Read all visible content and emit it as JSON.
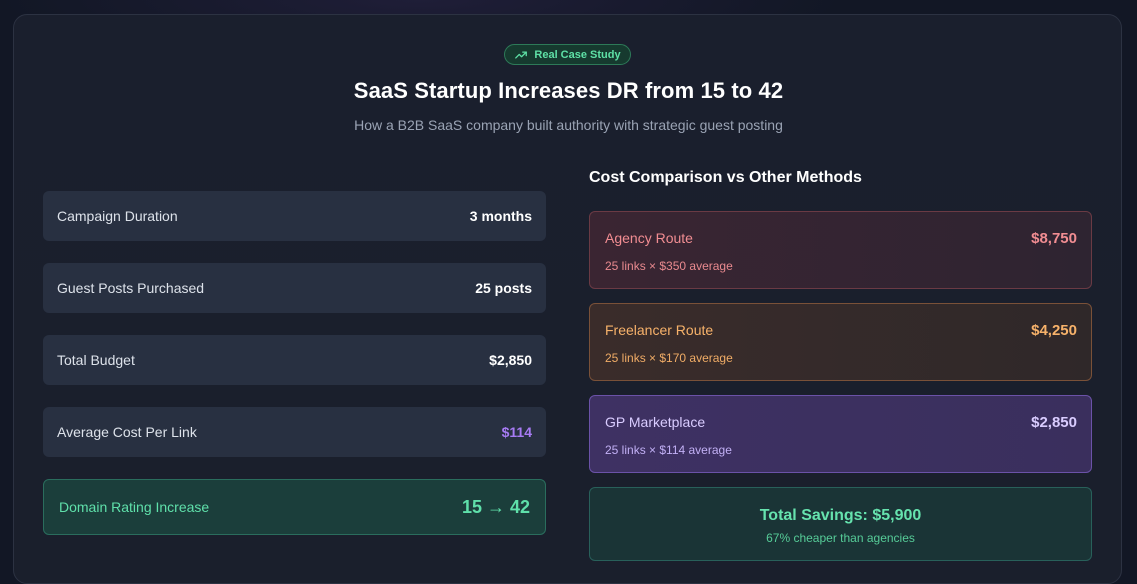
{
  "colors": {
    "accent_green": "#5fe0aa",
    "accent_purple": "#a77bf3",
    "agency_red": "#f18d92",
    "freelancer_orange": "#f7b26a",
    "marketplace_lavender": "#d9ccff"
  },
  "header": {
    "badge_icon": "trending-up-icon",
    "badge_label": "Real Case Study",
    "title": "SaaS Startup Increases DR from 15 to 42",
    "subtitle": "How a B2B SaaS company built authority with strategic guest posting"
  },
  "stats": [
    {
      "label": "Campaign Duration",
      "value": "3 months"
    },
    {
      "label": "Guest Posts Purchased",
      "value": "25 posts"
    },
    {
      "label": "Total Budget",
      "value": "$2,850"
    },
    {
      "label": "Average Cost Per Link",
      "value": "$114"
    },
    {
      "label": "Domain Rating Increase",
      "value": "15 → 42"
    }
  ],
  "comparison": {
    "title": "Cost Comparison vs Other Methods",
    "routes": [
      {
        "name": "Agency Route",
        "price": "$8,750",
        "detail": "25 links × $350 average"
      },
      {
        "name": "Freelancer Route",
        "price": "$4,250",
        "detail": "25 links × $170 average"
      },
      {
        "name": "GP Marketplace",
        "price": "$2,850",
        "detail": "25 links × $114 average"
      }
    ],
    "savings_total": "Total Savings: $5,900",
    "savings_note": "67% cheaper than agencies"
  }
}
